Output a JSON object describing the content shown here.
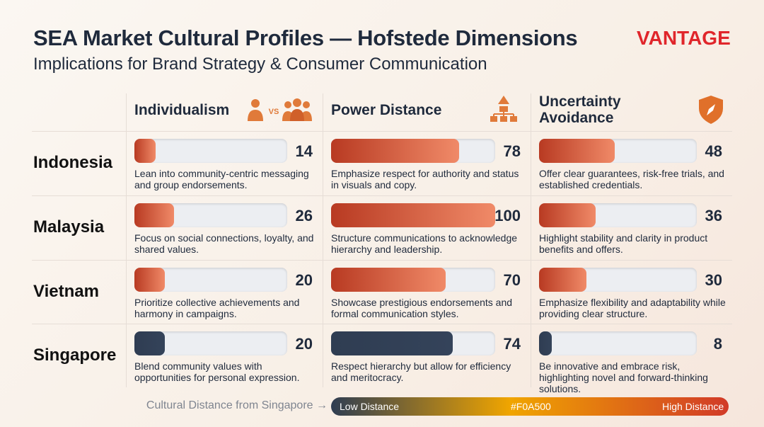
{
  "header": {
    "title": "SEA Market Cultural Profiles — Hofstede Dimensions",
    "subtitle": "Implications for Brand Strategy & Consumer Communication",
    "brand": "VANTAGE"
  },
  "table": {
    "columns": [
      "Individualism",
      "Power Distance",
      "Uncertainty Avoidance"
    ],
    "rows": [
      {
        "country": "Indonesia",
        "colors": [
          "#b83a22",
          "#f08a68"
        ],
        "cells": [
          {
            "value": 14,
            "text": "Lean into community-centric messaging and group endorsements."
          },
          {
            "value": 78,
            "text": "Emphasize respect for authority and status in visuals and copy."
          },
          {
            "value": 48,
            "text": "Offer clear guarantees, risk-free trials, and established credentials."
          }
        ]
      },
      {
        "country": "Malaysia",
        "colors": [
          "#b83a22",
          "#f08a68"
        ],
        "cells": [
          {
            "value": 26,
            "text": "Focus on social connections, loyalty, and shared values."
          },
          {
            "value": 100,
            "text": "Structure communications to acknowledge hierarchy and leadership."
          },
          {
            "value": 36,
            "text": "Highlight stability and clarity in product benefits and offers."
          }
        ]
      },
      {
        "country": "Vietnam",
        "colors": [
          "#b83a22",
          "#f08a68"
        ],
        "cells": [
          {
            "value": 20,
            "text": "Prioritize collective achievements and harmony in campaigns."
          },
          {
            "value": 70,
            "text": "Showcase prestigious endorsements and formal communication styles."
          },
          {
            "value": 30,
            "text": "Emphasize flexibility and adaptability while providing clear structure."
          }
        ]
      },
      {
        "country": "Singapore",
        "colors": [
          "#2f3d52",
          "#34435a"
        ],
        "cells": [
          {
            "value": 20,
            "text": "Blend community values with opportunities for personal expression."
          },
          {
            "value": 74,
            "text": "Respect hierarchy but allow for efficiency and meritocracy."
          },
          {
            "value": 8,
            "text": "Be innovative and embrace risk, highlighting novel and forward-thinking solutions."
          }
        ]
      }
    ]
  },
  "legend": {
    "label": "Cultural Distance from Singapore →",
    "low": "Low Distance",
    "mid": "#F0A500",
    "high": "High Distance",
    "colors": [
      "#2f3d52",
      "#F0A500",
      "#d13a28"
    ]
  }
}
